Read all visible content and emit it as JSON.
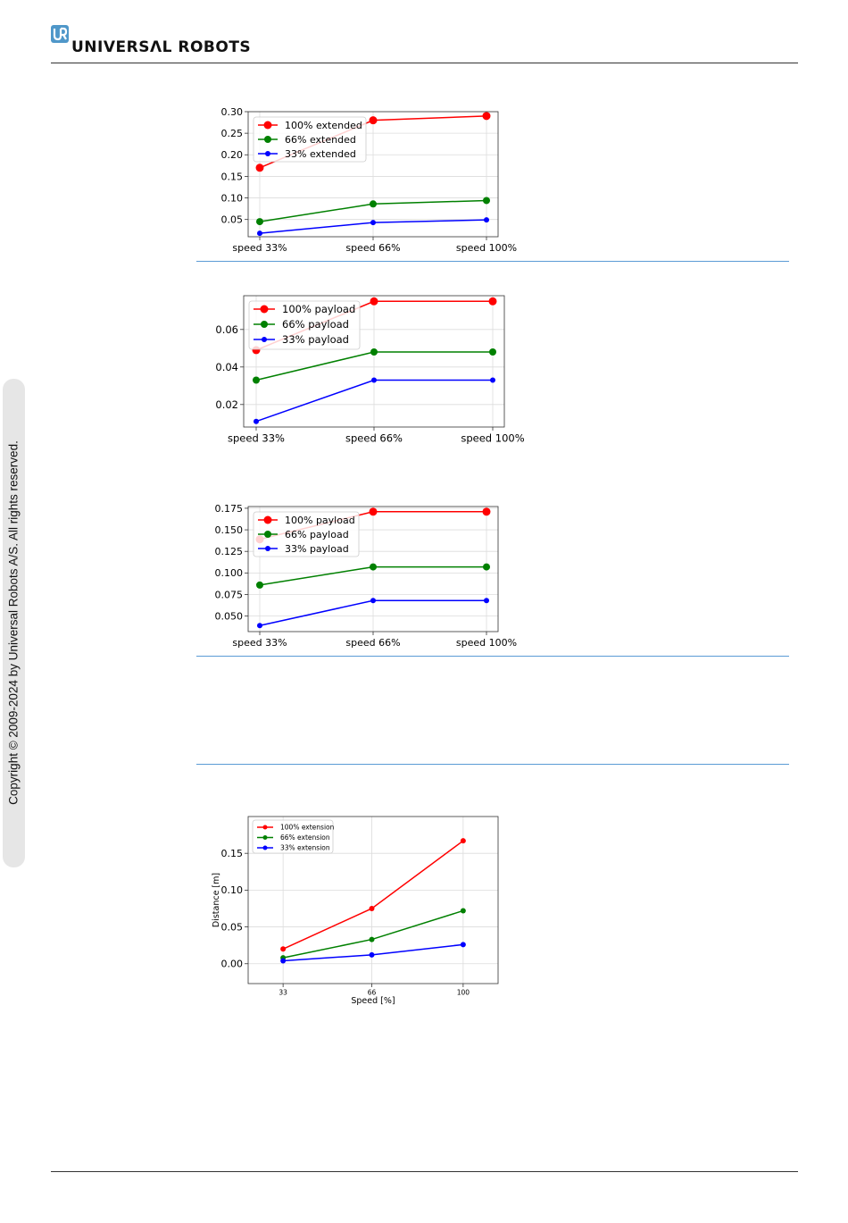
{
  "header": {
    "brand": "UNIVERSΛL ROBOTS",
    "logo_icon": "ur-logo-icon"
  },
  "sidebar": {
    "copyright": "Copyright © 2009-2024 by Universal Robots A/S. All rights reserved."
  },
  "colors": {
    "red": "#ff0000",
    "green": "#008000",
    "blue": "#0000ff",
    "rule": "#5b9bd5"
  },
  "chart_data": [
    {
      "type": "line",
      "categories": [
        "speed 33%",
        "speed 66%",
        "speed 100%"
      ],
      "yticks": [
        0.05,
        0.1,
        0.15,
        0.2,
        0.25,
        0.3
      ],
      "ytick_labels": [
        "0.05",
        "0.10",
        "0.15",
        "0.20",
        "0.25",
        "0.30"
      ],
      "ylim": [
        0.01,
        0.3
      ],
      "grid": true,
      "legend": "top-left",
      "xlabel": "",
      "ylabel": "",
      "series": [
        {
          "name": "100% extended",
          "color": "#ff0000",
          "values": [
            0.17,
            0.28,
            0.29
          ]
        },
        {
          "name": "66% extended",
          "color": "#008000",
          "values": [
            0.045,
            0.086,
            0.094
          ]
        },
        {
          "name": "33% extended",
          "color": "#0000ff",
          "values": [
            0.018,
            0.043,
            0.049
          ]
        }
      ]
    },
    {
      "type": "line",
      "categories": [
        "speed 33%",
        "speed 66%",
        "speed 100%"
      ],
      "yticks": [
        0.02,
        0.04,
        0.06
      ],
      "ytick_labels": [
        "0.02",
        "0.04",
        "0.06"
      ],
      "ylim": [
        0.008,
        0.078
      ],
      "grid": true,
      "legend": "top-left",
      "xlabel": "",
      "ylabel": "",
      "series": [
        {
          "name": "100% payload",
          "color": "#ff0000",
          "values": [
            0.049,
            0.075,
            0.075
          ]
        },
        {
          "name": "66% payload",
          "color": "#008000",
          "values": [
            0.033,
            0.048,
            0.048
          ]
        },
        {
          "name": "33% payload",
          "color": "#0000ff",
          "values": [
            0.011,
            0.033,
            0.033
          ]
        }
      ]
    },
    {
      "type": "line",
      "categories": [
        "speed 33%",
        "speed 66%",
        "speed 100%"
      ],
      "yticks": [
        0.05,
        0.075,
        0.1,
        0.125,
        0.15,
        0.175
      ],
      "ytick_labels": [
        "0.050",
        "0.075",
        "0.100",
        "0.125",
        "0.150",
        "0.175"
      ],
      "ylim": [
        0.032,
        0.177
      ],
      "grid": true,
      "legend": "top-left",
      "xlabel": "",
      "ylabel": "",
      "series": [
        {
          "name": "100% payload",
          "color": "#ff0000",
          "values": [
            0.139,
            0.171,
            0.171
          ]
        },
        {
          "name": "66% payload",
          "color": "#008000",
          "values": [
            0.086,
            0.107,
            0.107
          ]
        },
        {
          "name": "33% payload",
          "color": "#0000ff",
          "values": [
            0.039,
            0.068,
            0.068
          ]
        }
      ]
    },
    {
      "type": "line",
      "categories": [
        "33",
        "66",
        "100"
      ],
      "x": [
        33,
        66,
        100
      ],
      "yticks": [
        0.0,
        0.05,
        0.1,
        0.15
      ],
      "ytick_labels": [
        "0.00",
        "0.05",
        "0.10",
        "0.15"
      ],
      "ylim": [
        -0.027,
        0.2
      ],
      "xlim": [
        20,
        113
      ],
      "grid": true,
      "legend": "top-left",
      "xlabel": "Speed [%]",
      "ylabel": "Distance [m]",
      "series": [
        {
          "name": "100% extension",
          "color": "#ff0000",
          "values": [
            0.02,
            0.075,
            0.167
          ]
        },
        {
          "name": "66% extension",
          "color": "#008000",
          "values": [
            0.008,
            0.033,
            0.072
          ]
        },
        {
          "name": "33% extension",
          "color": "#0000ff",
          "values": [
            0.004,
            0.012,
            0.026
          ]
        }
      ]
    }
  ]
}
